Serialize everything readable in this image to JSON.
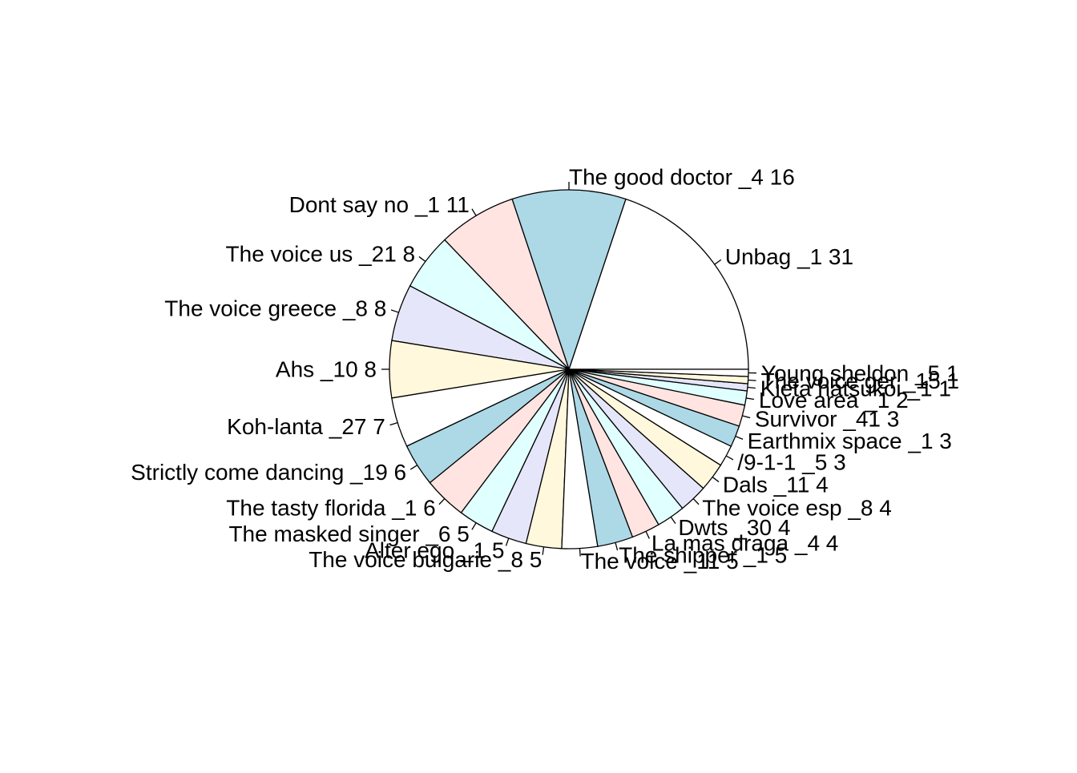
{
  "chart_data": {
    "type": "pie",
    "title": "",
    "direction": "counterclockwise",
    "start_angle_degrees": 0,
    "palette": [
      "#ffffff",
      "#add8e6",
      "#ffe4e1",
      "#e0ffff",
      "#e6e6fa",
      "#fff8dc"
    ],
    "slices": [
      {
        "label": "Unbag _1  31",
        "value": 31
      },
      {
        "label": "The good doctor _4  16",
        "value": 16
      },
      {
        "label": "Dont say no _1  11",
        "value": 11
      },
      {
        "label": "The voice us _21  8",
        "value": 8
      },
      {
        "label": "The voice greece _8  8",
        "value": 8
      },
      {
        "label": "Ahs _10  8",
        "value": 8
      },
      {
        "label": "Koh-lanta _27  7",
        "value": 7
      },
      {
        "label": "Strictly come dancing _19  6",
        "value": 6
      },
      {
        "label": "The tasty florida _1  6",
        "value": 6
      },
      {
        "label": "The masked singer _6  5",
        "value": 5
      },
      {
        "label": "Alter ego _1  5",
        "value": 5
      },
      {
        "label": "The voice bulgarie _8  5",
        "value": 5
      },
      {
        "label": "The voice _11  5",
        "value": 5
      },
      {
        "label": "The shipper _1  5",
        "value": 5
      },
      {
        "label": "La mas draga _4  4",
        "value": 4
      },
      {
        "label": "Dwts _30  4",
        "value": 4
      },
      {
        "label": "The voice esp _8  4",
        "value": 4
      },
      {
        "label": "Dals _11  4",
        "value": 4
      },
      {
        "label": "/9-1-1 _5  3",
        "value": 3
      },
      {
        "label": "Earthmix space _1  3",
        "value": 3
      },
      {
        "label": "Survivor _41  3",
        "value": 3
      },
      {
        "label": "Love area _1  2",
        "value": 2
      },
      {
        "label": "Kieta hatsukoi _1  1",
        "value": 1
      },
      {
        "label": "The voice ger _15  1",
        "value": 1
      },
      {
        "label": "Young sheldon _5  1",
        "value": 1
      }
    ]
  }
}
